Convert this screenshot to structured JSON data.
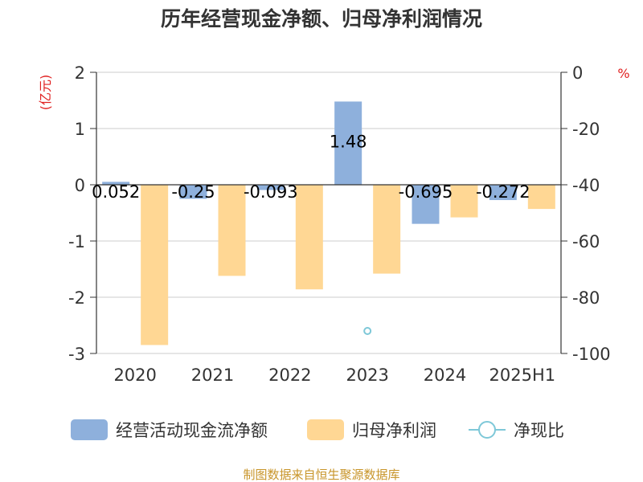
{
  "title": "历年经营现金净额、归母净利润情况",
  "footer": "制图数据来自恒生聚源数据库",
  "chart_data": {
    "type": "bar",
    "categories": [
      "2020",
      "2021",
      "2022",
      "2023",
      "2024",
      "2025H1"
    ],
    "series": [
      {
        "name": "经营活动现金流净额",
        "axis": "left",
        "color": "#8eb0dc",
        "values": [
          0.052,
          -0.25,
          -0.093,
          1.48,
          -0.695,
          -0.272
        ],
        "labels": [
          "0.052",
          "-0.25",
          "-0.093",
          "1.48",
          "-0.695",
          "-0.272"
        ]
      },
      {
        "name": "归母净利润",
        "axis": "left",
        "color": "#ffd794",
        "values": [
          -2.85,
          -1.62,
          -1.86,
          -1.58,
          -0.58,
          -0.43
        ]
      },
      {
        "name": "净现比",
        "axis": "right",
        "type": "scatter",
        "color": "#7ec8d8",
        "values": [
          null,
          null,
          null,
          -92,
          null,
          null
        ]
      }
    ],
    "y_left": {
      "unit": "(亿元)",
      "ylim": [
        -3,
        2
      ],
      "ticks": [
        "2",
        "1",
        "0",
        "-1",
        "-2",
        "-3"
      ],
      "tick_values": [
        2,
        1,
        0,
        -1,
        -2,
        -3
      ]
    },
    "y_right": {
      "unit": "%",
      "ylim": [
        -100,
        0
      ],
      "ticks": [
        "0",
        "-20",
        "-40",
        "-60",
        "-80",
        "-100"
      ],
      "tick_values": [
        0,
        -20,
        -40,
        -60,
        -80,
        -100
      ]
    },
    "grid": true,
    "legend_position": "bottom"
  },
  "colors": {
    "unit_label": "#e02020",
    "footer": "#c8952a",
    "grid": "#cccccc",
    "axis": "#333333"
  }
}
